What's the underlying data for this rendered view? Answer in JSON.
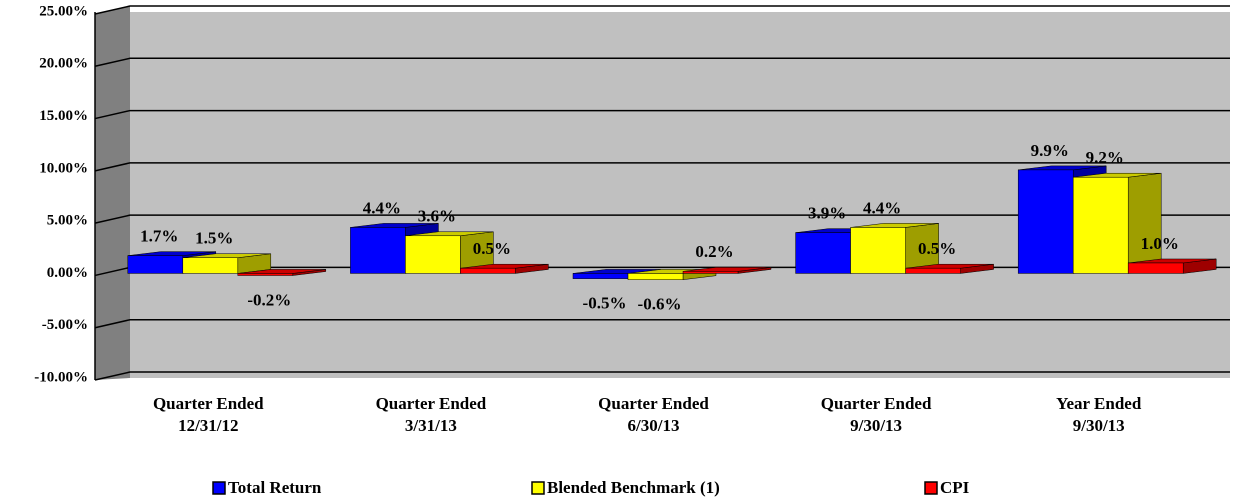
{
  "chart_data": {
    "type": "bar3d",
    "categories": [
      [
        "Quarter Ended",
        "12/31/12"
      ],
      [
        "Quarter Ended",
        "3/31/13"
      ],
      [
        "Quarter Ended",
        "6/30/13"
      ],
      [
        "Quarter Ended",
        "9/30/13"
      ],
      [
        "Year Ended",
        "9/30/13"
      ]
    ],
    "series": [
      {
        "name": "Total Return",
        "color": "#0000ff",
        "values": [
          1.7,
          4.4,
          -0.5,
          3.9,
          9.9
        ],
        "value_labels": [
          "1.7%",
          "4.4%",
          "-0.5%",
          "3.9%",
          "9.9%"
        ]
      },
      {
        "name": "Blended Benchmark (1)",
        "color": "#ffff00",
        "values": [
          1.5,
          3.6,
          -0.6,
          4.4,
          9.2
        ],
        "value_labels": [
          "1.5%",
          "3.6%",
          "-0.6%",
          "4.4%",
          "9.2%"
        ]
      },
      {
        "name": "CPI",
        "color": "#ff0000",
        "values": [
          -0.2,
          0.5,
          0.2,
          0.5,
          1.0
        ],
        "value_labels": [
          "-0.2%",
          "0.5%",
          "0.2%",
          "0.5%",
          "1.0%"
        ]
      }
    ],
    "ylim": [
      -10,
      25
    ],
    "yticks": [
      {
        "value": -10,
        "label": "-10.00%"
      },
      {
        "value": -5,
        "label": "-5.00%"
      },
      {
        "value": 0,
        "label": "0.00%"
      },
      {
        "value": 5,
        "label": "5.00%"
      },
      {
        "value": 10,
        "label": "10.00%"
      },
      {
        "value": 15,
        "label": "15.00%"
      },
      {
        "value": 20,
        "label": "20.00%"
      },
      {
        "value": 25,
        "label": "25.00%"
      }
    ],
    "grid": true,
    "legend": "bottom"
  }
}
